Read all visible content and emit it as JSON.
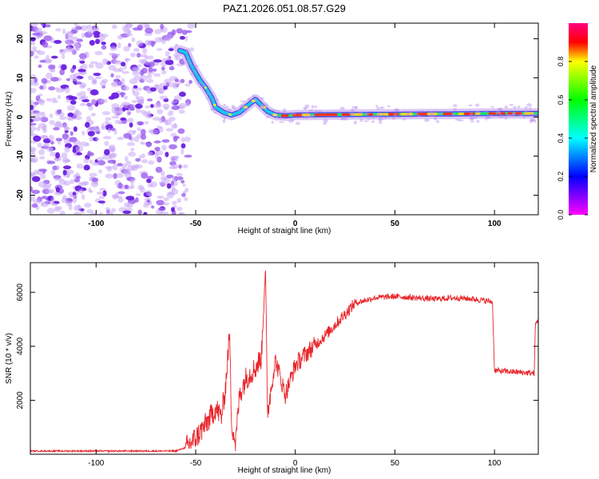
{
  "title": "PAZ1.2026.051.08.57.G29",
  "chart_data": [
    {
      "type": "heatmap",
      "name": "spectrogram",
      "xlabel": "Height of straight line (km)",
      "ylabel": "Frequency (Hz)",
      "xlim": [
        -133,
        122
      ],
      "ylim": [
        -25,
        24
      ],
      "xticks": [
        -100,
        -50,
        0,
        50,
        100
      ],
      "yticks": [
        -20,
        -10,
        0,
        10,
        20
      ],
      "colorbar": {
        "label": "Normalized spectral amplitude",
        "range": [
          0,
          1
        ],
        "ticks": [
          "0.0",
          "0.2",
          "0.4",
          "0.6",
          "0.8"
        ]
      },
      "ridge": {
        "description_points": [
          [
            -58,
            17
          ],
          [
            -55,
            16.5
          ],
          [
            -52,
            13
          ],
          [
            -48,
            9.5
          ],
          [
            -45,
            7.5
          ],
          [
            -42,
            5
          ],
          [
            -40,
            2.5
          ],
          [
            -36,
            1.2
          ],
          [
            -32,
            0.5
          ],
          [
            -28,
            1.2
          ],
          [
            -25,
            2.5
          ],
          [
            -20,
            4.5
          ],
          [
            -17,
            3
          ],
          [
            -14,
            1.5
          ],
          [
            -10,
            0.5
          ],
          [
            -5,
            0.3
          ],
          [
            0,
            0.5
          ],
          [
            20,
            0.6
          ],
          [
            50,
            0.7
          ],
          [
            80,
            0.8
          ],
          [
            100,
            0.9
          ],
          [
            122,
            0.9
          ]
        ]
      },
      "noise_region_x": [
        -133,
        -55
      ]
    },
    {
      "type": "line",
      "name": "snr",
      "xlabel": "Height of straight line (km)",
      "ylabel": "SNR (10 * v/v)",
      "xlim": [
        -133,
        122
      ],
      "ylim": [
        0,
        7100
      ],
      "xticks": [
        -100,
        -50,
        0,
        50,
        100
      ],
      "yticks": [
        2000,
        4000,
        6000
      ],
      "color": "#e8252a",
      "keypoints": [
        [
          -133,
          120
        ],
        [
          -60,
          120
        ],
        [
          -55,
          250
        ],
        [
          -50,
          600
        ],
        [
          -45,
          1100
        ],
        [
          -40,
          1700
        ],
        [
          -37,
          1400
        ],
        [
          -35,
          2500
        ],
        [
          -33,
          4500
        ],
        [
          -32,
          1200
        ],
        [
          -30,
          400
        ],
        [
          -28,
          2200
        ],
        [
          -25,
          2800
        ],
        [
          -20,
          3200
        ],
        [
          -17,
          3600
        ],
        [
          -15,
          7050
        ],
        [
          -14,
          1500
        ],
        [
          -10,
          3500
        ],
        [
          -5,
          2200
        ],
        [
          0,
          3300
        ],
        [
          5,
          3700
        ],
        [
          15,
          4400
        ],
        [
          25,
          5200
        ],
        [
          30,
          5600
        ],
        [
          40,
          5800
        ],
        [
          50,
          5850
        ],
        [
          60,
          5800
        ],
        [
          70,
          5750
        ],
        [
          80,
          5800
        ],
        [
          90,
          5750
        ],
        [
          99,
          5650
        ],
        [
          100,
          3100
        ],
        [
          110,
          3050
        ],
        [
          120,
          3000
        ],
        [
          120.5,
          4800
        ],
        [
          122,
          5000
        ]
      ]
    }
  ]
}
